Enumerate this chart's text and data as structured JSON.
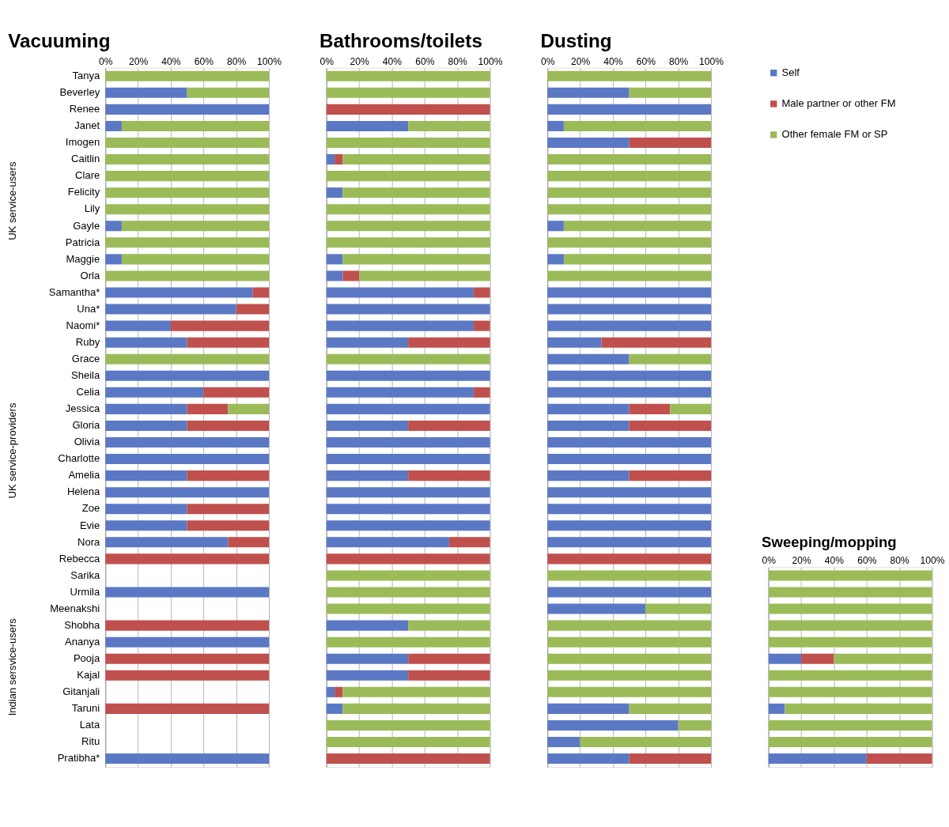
{
  "chart_data": [
    {
      "type": "bar",
      "orientation": "horizontal",
      "stacked": true,
      "title": "Vacuuming",
      "grid": "x",
      "tick_labels": "xy",
      "categories": [
        "Tanya",
        "Beverley",
        "Renee",
        "Janet",
        "Imogen",
        "Caitlin",
        "Clare",
        "Felicity",
        "Lily",
        "Gayle",
        "Patricia",
        "Maggie",
        "Orla",
        "Samantha*",
        "Una*",
        "Naomi*",
        "Ruby",
        "Grace",
        "Sheila",
        "Celia",
        "Jessica",
        "Gloria",
        "Olivia",
        "Charlotte",
        "Amelia",
        "Helena",
        "Zoe",
        "Evie",
        "Nora",
        "Rebecca",
        "Sarika",
        "Urmila",
        "Meenakshi",
        "Shobha",
        "Ananya",
        "Pooja",
        "Kajal",
        "Gitanjali",
        "Taruni",
        "Lata",
        "Ritu",
        "Pratibha*"
      ],
      "xlim": [
        0,
        100
      ],
      "xticks": [
        {
          "value": 0,
          "label": "0%"
        },
        {
          "value": 20,
          "label": "20%"
        },
        {
          "value": 40,
          "label": "40%"
        },
        {
          "value": 60,
          "label": "60%"
        },
        {
          "value": 80,
          "label": "80%"
        },
        {
          "value": 100,
          "label": "100%"
        }
      ],
      "annotations": [
        "UK service-users",
        "UK service-providers",
        "Indian sersvice-users"
      ],
      "legend": "top right",
      "series": [
        {
          "name": "Self",
          "color": "#5b78c5",
          "values": [
            0,
            50,
            100,
            10,
            0,
            0,
            0,
            0,
            0,
            10,
            0,
            10,
            0,
            90,
            80,
            40,
            50,
            0,
            100,
            60,
            50,
            50,
            100,
            100,
            50,
            100,
            50,
            50,
            75,
            0,
            null,
            100,
            null,
            0,
            100,
            0,
            0,
            null,
            0,
            null,
            null,
            100
          ]
        },
        {
          "name": "Male partner or other FM",
          "color": "#c0504d",
          "values": [
            0,
            0,
            0,
            0,
            0,
            0,
            0,
            0,
            0,
            0,
            0,
            0,
            0,
            10,
            20,
            60,
            50,
            0,
            0,
            40,
            25,
            50,
            0,
            0,
            50,
            0,
            50,
            50,
            25,
            100,
            null,
            0,
            null,
            100,
            0,
            100,
            100,
            null,
            100,
            null,
            null,
            0
          ]
        },
        {
          "name": "Other female FM or SP",
          "color": "#9bbb59",
          "values": [
            100,
            50,
            0,
            90,
            100,
            100,
            100,
            100,
            100,
            90,
            100,
            90,
            100,
            0,
            0,
            0,
            0,
            100,
            0,
            0,
            25,
            0,
            0,
            0,
            0,
            0,
            0,
            0,
            0,
            0,
            null,
            0,
            null,
            0,
            0,
            0,
            0,
            null,
            0,
            null,
            null,
            0
          ]
        }
      ]
    },
    {
      "type": "bar",
      "orientation": "horizontal",
      "stacked": true,
      "title": "Bathrooms/toilets",
      "grid": "x",
      "tick_labels": "x",
      "categories": [
        "Tanya",
        "Beverley",
        "Renee",
        "Janet",
        "Imogen",
        "Caitlin",
        "Clare",
        "Felicity",
        "Lily",
        "Gayle",
        "Patricia",
        "Maggie",
        "Orla",
        "Samantha*",
        "Una*",
        "Naomi*",
        "Ruby",
        "Grace",
        "Sheila",
        "Celia",
        "Jessica",
        "Gloria",
        "Olivia",
        "Charlotte",
        "Amelia",
        "Helena",
        "Zoe",
        "Evie",
        "Nora",
        "Rebecca",
        "Sarika",
        "Urmila",
        "Meenakshi",
        "Shobha",
        "Ananya",
        "Pooja",
        "Kajal",
        "Gitanjali",
        "Taruni",
        "Lata",
        "Ritu",
        "Pratibha*"
      ],
      "xlim": [
        0,
        100
      ],
      "xticks": [
        {
          "value": 0,
          "label": "0%"
        },
        {
          "value": 20,
          "label": "20%"
        },
        {
          "value": 40,
          "label": "40%"
        },
        {
          "value": 60,
          "label": "60%"
        },
        {
          "value": 80,
          "label": "80%"
        },
        {
          "value": 100,
          "label": "100%"
        }
      ],
      "series": [
        {
          "name": "Self",
          "color": "#5b78c5",
          "values": [
            0,
            0,
            0,
            50,
            0,
            5,
            0,
            10,
            0,
            0,
            0,
            10,
            10,
            90,
            100,
            90,
            50,
            0,
            100,
            90,
            100,
            50,
            100,
            100,
            50,
            100,
            100,
            100,
            75,
            0,
            0,
            0,
            0,
            50,
            0,
            50,
            50,
            5,
            10,
            0,
            0,
            0
          ]
        },
        {
          "name": "Male partner or other FM",
          "color": "#c0504d",
          "values": [
            0,
            0,
            100,
            0,
            0,
            5,
            0,
            0,
            0,
            0,
            0,
            0,
            10,
            10,
            0,
            10,
            50,
            0,
            0,
            10,
            0,
            50,
            0,
            0,
            50,
            0,
            0,
            0,
            25,
            100,
            0,
            0,
            0,
            0,
            0,
            50,
            50,
            5,
            0,
            0,
            0,
            100
          ]
        },
        {
          "name": "Other female FM or SP",
          "color": "#9bbb59",
          "values": [
            100,
            100,
            0,
            50,
            100,
            90,
            100,
            90,
            100,
            100,
            100,
            90,
            80,
            0,
            0,
            0,
            0,
            100,
            0,
            0,
            0,
            0,
            0,
            0,
            0,
            0,
            0,
            0,
            0,
            0,
            100,
            100,
            100,
            50,
            100,
            0,
            0,
            90,
            90,
            100,
            100,
            0
          ]
        }
      ]
    },
    {
      "type": "bar",
      "orientation": "horizontal",
      "stacked": true,
      "title": "Dusting",
      "grid": "x",
      "tick_labels": "x",
      "categories": [
        "Tanya",
        "Beverley",
        "Renee",
        "Janet",
        "Imogen",
        "Caitlin",
        "Clare",
        "Felicity",
        "Lily",
        "Gayle",
        "Patricia",
        "Maggie",
        "Orla",
        "Samantha*",
        "Una*",
        "Naomi*",
        "Ruby",
        "Grace",
        "Sheila",
        "Celia",
        "Jessica",
        "Gloria",
        "Olivia",
        "Charlotte",
        "Amelia",
        "Helena",
        "Zoe",
        "Evie",
        "Nora",
        "Rebecca",
        "Sarika",
        "Urmila",
        "Meenakshi",
        "Shobha",
        "Ananya",
        "Pooja",
        "Kajal",
        "Gitanjali",
        "Taruni",
        "Lata",
        "Ritu",
        "Pratibha*"
      ],
      "xlim": [
        0,
        100
      ],
      "xticks": [
        {
          "value": 0,
          "label": "0%"
        },
        {
          "value": 20,
          "label": "20%"
        },
        {
          "value": 40,
          "label": "40%"
        },
        {
          "value": 60,
          "label": "60%"
        },
        {
          "value": 80,
          "label": "80%"
        },
        {
          "value": 100,
          "label": "100%"
        }
      ],
      "series": [
        {
          "name": "Self",
          "color": "#5b78c5",
          "values": [
            0,
            50,
            100,
            10,
            50,
            0,
            0,
            0,
            0,
            10,
            0,
            10,
            0,
            100,
            100,
            100,
            33,
            50,
            100,
            100,
            50,
            50,
            100,
            100,
            50,
            100,
            100,
            100,
            100,
            0,
            0,
            100,
            60,
            0,
            0,
            0,
            0,
            0,
            50,
            80,
            20,
            50
          ]
        },
        {
          "name": "Male partner or other FM",
          "color": "#c0504d",
          "values": [
            0,
            0,
            0,
            0,
            50,
            0,
            0,
            0,
            0,
            0,
            0,
            0,
            0,
            0,
            0,
            0,
            67,
            0,
            0,
            0,
            25,
            50,
            0,
            0,
            50,
            0,
            0,
            0,
            0,
            100,
            0,
            0,
            0,
            0,
            0,
            0,
            0,
            0,
            0,
            0,
            0,
            50
          ]
        },
        {
          "name": "Other female FM or SP",
          "color": "#9bbb59",
          "values": [
            100,
            50,
            0,
            90,
            0,
            100,
            100,
            100,
            100,
            90,
            100,
            90,
            100,
            0,
            0,
            0,
            0,
            50,
            0,
            0,
            25,
            0,
            0,
            0,
            0,
            0,
            0,
            0,
            0,
            0,
            100,
            0,
            40,
            100,
            100,
            100,
            100,
            100,
            50,
            20,
            80,
            0
          ]
        }
      ]
    },
    {
      "type": "bar",
      "orientation": "horizontal",
      "stacked": true,
      "title": "Sweeping/mopping",
      "grid": "x",
      "tick_labels": "x",
      "categories": [
        "Sarika",
        "Urmila",
        "Meenakshi",
        "Shobha",
        "Ananya",
        "Pooja",
        "Kajal",
        "Gitanjali",
        "Taruni",
        "Lata",
        "Ritu",
        "Pratibha*"
      ],
      "xlim": [
        0,
        100
      ],
      "xticks": [
        {
          "value": 0,
          "label": "0%"
        },
        {
          "value": 20,
          "label": "20%"
        },
        {
          "value": 40,
          "label": "40%"
        },
        {
          "value": 60,
          "label": "60%"
        },
        {
          "value": 80,
          "label": "80%"
        },
        {
          "value": 100,
          "label": "100%"
        }
      ],
      "series": [
        {
          "name": "Self",
          "color": "#5b78c5",
          "values": [
            0,
            0,
            0,
            0,
            0,
            20,
            0,
            0,
            10,
            0,
            0,
            60
          ]
        },
        {
          "name": "Male partner or other FM",
          "color": "#c0504d",
          "values": [
            0,
            0,
            0,
            0,
            0,
            20,
            0,
            0,
            0,
            0,
            0,
            40
          ]
        },
        {
          "name": "Other female FM or SP",
          "color": "#9bbb59",
          "values": [
            100,
            100,
            100,
            100,
            100,
            60,
            100,
            100,
            90,
            100,
            100,
            0
          ]
        }
      ]
    }
  ]
}
